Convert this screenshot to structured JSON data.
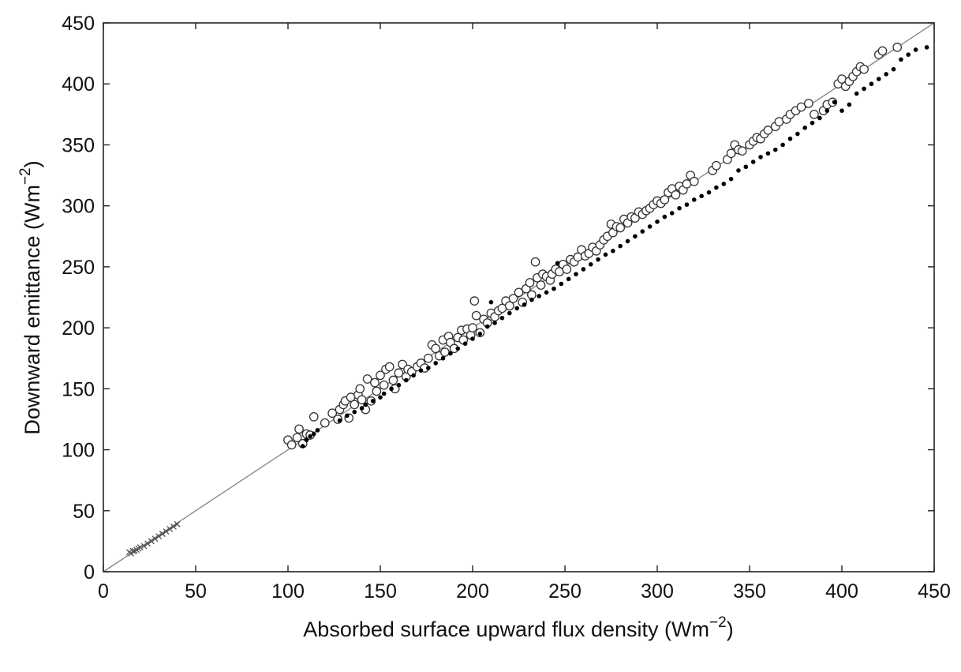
{
  "chart_data": {
    "type": "scatter",
    "xlabel": "Absorbed surface upward flux density (Wm",
    "xlabel_unit_exponent": "−2",
    "xlabel_close": ")",
    "ylabel": "Downward emittance (Wm",
    "ylabel_unit_exponent": "−2",
    "ylabel_close": ")",
    "xlim": [
      0,
      450
    ],
    "ylim": [
      0,
      450
    ],
    "xticks": [
      0,
      50,
      100,
      150,
      200,
      250,
      300,
      350,
      400,
      450
    ],
    "yticks": [
      0,
      50,
      100,
      150,
      200,
      250,
      300,
      350,
      400,
      450
    ],
    "xtick_labels": [
      "0",
      "50",
      "100",
      "150",
      "200",
      "250",
      "300",
      "350",
      "400",
      "450"
    ],
    "ytick_labels": [
      "0",
      "50",
      "100",
      "150",
      "200",
      "250",
      "300",
      "350",
      "400",
      "450"
    ],
    "grid": false,
    "reference_line": {
      "from": [
        0,
        0
      ],
      "to": [
        450,
        450
      ],
      "color": "#8a8a8a"
    },
    "series": [
      {
        "marker": "open-circle",
        "color": "#333333",
        "points": [
          [
            100,
            108
          ],
          [
            102,
            104
          ],
          [
            105,
            110
          ],
          [
            106,
            117
          ],
          [
            108,
            105
          ],
          [
            110,
            113
          ],
          [
            112,
            112
          ],
          [
            114,
            127
          ],
          [
            120,
            122
          ],
          [
            124,
            130
          ],
          [
            127,
            125
          ],
          [
            128,
            133
          ],
          [
            130,
            137
          ],
          [
            131,
            140
          ],
          [
            133,
            126
          ],
          [
            134,
            143
          ],
          [
            136,
            137
          ],
          [
            138,
            145
          ],
          [
            139,
            150
          ],
          [
            140,
            141
          ],
          [
            142,
            133
          ],
          [
            143,
            158
          ],
          [
            145,
            140
          ],
          [
            147,
            155
          ],
          [
            148,
            148
          ],
          [
            150,
            161
          ],
          [
            152,
            153
          ],
          [
            153,
            166
          ],
          [
            155,
            168
          ],
          [
            157,
            157
          ],
          [
            158,
            150
          ],
          [
            160,
            163
          ],
          [
            162,
            170
          ],
          [
            164,
            160
          ],
          [
            165,
            166
          ],
          [
            167,
            164
          ],
          [
            170,
            168
          ],
          [
            172,
            171
          ],
          [
            174,
            167
          ],
          [
            176,
            175
          ],
          [
            178,
            186
          ],
          [
            180,
            183
          ],
          [
            182,
            177
          ],
          [
            184,
            190
          ],
          [
            185,
            180
          ],
          [
            187,
            193
          ],
          [
            188,
            188
          ],
          [
            190,
            183
          ],
          [
            192,
            192
          ],
          [
            194,
            198
          ],
          [
            195,
            190
          ],
          [
            197,
            199
          ],
          [
            199,
            194
          ],
          [
            200,
            200
          ],
          [
            201,
            222
          ],
          [
            202,
            210
          ],
          [
            204,
            196
          ],
          [
            206,
            207
          ],
          [
            208,
            204
          ],
          [
            210,
            212
          ],
          [
            212,
            209
          ],
          [
            214,
            214
          ],
          [
            216,
            216
          ],
          [
            218,
            222
          ],
          [
            220,
            218
          ],
          [
            222,
            224
          ],
          [
            225,
            229
          ],
          [
            227,
            221
          ],
          [
            229,
            232
          ],
          [
            231,
            237
          ],
          [
            232,
            227
          ],
          [
            234,
            254
          ],
          [
            235,
            241
          ],
          [
            237,
            235
          ],
          [
            238,
            244
          ],
          [
            240,
            242
          ],
          [
            242,
            239
          ],
          [
            243,
            244
          ],
          [
            245,
            248
          ],
          [
            247,
            246
          ],
          [
            249,
            252
          ],
          [
            251,
            248
          ],
          [
            253,
            256
          ],
          [
            255,
            254
          ],
          [
            257,
            258
          ],
          [
            259,
            264
          ],
          [
            261,
            259
          ],
          [
            263,
            261
          ],
          [
            265,
            266
          ],
          [
            267,
            263
          ],
          [
            269,
            268
          ],
          [
            271,
            272
          ],
          [
            273,
            275
          ],
          [
            275,
            285
          ],
          [
            276,
            278
          ],
          [
            278,
            283
          ],
          [
            280,
            282
          ],
          [
            282,
            289
          ],
          [
            284,
            286
          ],
          [
            286,
            291
          ],
          [
            288,
            290
          ],
          [
            290,
            295
          ],
          [
            292,
            293
          ],
          [
            294,
            296
          ],
          [
            296,
            298
          ],
          [
            298,
            301
          ],
          [
            300,
            304
          ],
          [
            302,
            302
          ],
          [
            304,
            305
          ],
          [
            306,
            311
          ],
          [
            308,
            314
          ],
          [
            310,
            309
          ],
          [
            312,
            316
          ],
          [
            314,
            313
          ],
          [
            316,
            318
          ],
          [
            318,
            325
          ],
          [
            320,
            320
          ],
          [
            330,
            329
          ],
          [
            332,
            333
          ],
          [
            338,
            338
          ],
          [
            340,
            343
          ],
          [
            342,
            350
          ],
          [
            344,
            346
          ],
          [
            346,
            345
          ],
          [
            350,
            350
          ],
          [
            352,
            353
          ],
          [
            354,
            356
          ],
          [
            356,
            355
          ],
          [
            358,
            359
          ],
          [
            360,
            362
          ],
          [
            364,
            365
          ],
          [
            366,
            369
          ],
          [
            370,
            371
          ],
          [
            372,
            375
          ],
          [
            375,
            378
          ],
          [
            378,
            381
          ],
          [
            382,
            384
          ],
          [
            385,
            375
          ],
          [
            390,
            378
          ],
          [
            392,
            383
          ],
          [
            395,
            385
          ],
          [
            398,
            400
          ],
          [
            400,
            404
          ],
          [
            402,
            398
          ],
          [
            404,
            402
          ],
          [
            406,
            406
          ],
          [
            408,
            410
          ],
          [
            410,
            414
          ],
          [
            412,
            412
          ],
          [
            420,
            424
          ],
          [
            422,
            427
          ],
          [
            430,
            430
          ]
        ]
      },
      {
        "marker": "filled-dot",
        "color": "#000000",
        "points": [
          [
            108,
            103
          ],
          [
            110,
            108
          ],
          [
            112,
            111
          ],
          [
            114,
            113
          ],
          [
            116,
            116
          ],
          [
            128,
            124
          ],
          [
            132,
            128
          ],
          [
            136,
            131
          ],
          [
            140,
            134
          ],
          [
            142,
            137
          ],
          [
            146,
            140
          ],
          [
            150,
            143
          ],
          [
            152,
            146
          ],
          [
            156,
            150
          ],
          [
            160,
            153
          ],
          [
            164,
            157
          ],
          [
            168,
            161
          ],
          [
            172,
            165
          ],
          [
            176,
            167
          ],
          [
            180,
            171
          ],
          [
            184,
            175
          ],
          [
            188,
            179
          ],
          [
            192,
            183
          ],
          [
            196,
            187
          ],
          [
            200,
            191
          ],
          [
            204,
            195
          ],
          [
            208,
            201
          ],
          [
            210,
            221
          ],
          [
            212,
            204
          ],
          [
            216,
            208
          ],
          [
            220,
            212
          ],
          [
            224,
            216
          ],
          [
            228,
            219
          ],
          [
            232,
            223
          ],
          [
            236,
            226
          ],
          [
            240,
            229
          ],
          [
            244,
            232
          ],
          [
            246,
            253
          ],
          [
            248,
            236
          ],
          [
            252,
            240
          ],
          [
            256,
            244
          ],
          [
            260,
            248
          ],
          [
            264,
            252
          ],
          [
            268,
            256
          ],
          [
            272,
            260
          ],
          [
            276,
            263
          ],
          [
            280,
            267
          ],
          [
            284,
            271
          ],
          [
            288,
            275
          ],
          [
            292,
            279
          ],
          [
            296,
            283
          ],
          [
            300,
            287
          ],
          [
            304,
            291
          ],
          [
            308,
            294
          ],
          [
            312,
            298
          ],
          [
            316,
            301
          ],
          [
            320,
            305
          ],
          [
            324,
            308
          ],
          [
            328,
            311
          ],
          [
            332,
            315
          ],
          [
            336,
            318
          ],
          [
            340,
            322
          ],
          [
            344,
            329
          ],
          [
            348,
            332
          ],
          [
            352,
            336
          ],
          [
            356,
            340
          ],
          [
            360,
            343
          ],
          [
            364,
            346
          ],
          [
            368,
            350
          ],
          [
            372,
            355
          ],
          [
            376,
            359
          ],
          [
            380,
            364
          ],
          [
            384,
            368
          ],
          [
            388,
            372
          ],
          [
            392,
            378
          ],
          [
            396,
            385
          ],
          [
            400,
            378
          ],
          [
            404,
            383
          ],
          [
            408,
            392
          ],
          [
            412,
            396
          ],
          [
            416,
            400
          ],
          [
            420,
            404
          ],
          [
            424,
            408
          ],
          [
            428,
            412
          ],
          [
            432,
            420
          ],
          [
            436,
            424
          ],
          [
            440,
            428
          ],
          [
            446,
            430
          ]
        ]
      },
      {
        "marker": "cross",
        "color": "#555555",
        "points": [
          [
            14,
            16
          ],
          [
            15,
            15
          ],
          [
            16,
            17
          ],
          [
            17,
            17
          ],
          [
            18,
            18
          ],
          [
            19,
            19
          ],
          [
            20,
            20
          ],
          [
            22,
            21
          ],
          [
            24,
            23
          ],
          [
            26,
            25
          ],
          [
            28,
            27
          ],
          [
            30,
            29
          ],
          [
            32,
            31
          ],
          [
            34,
            33
          ],
          [
            36,
            35
          ],
          [
            38,
            37
          ],
          [
            40,
            39
          ]
        ]
      }
    ]
  }
}
